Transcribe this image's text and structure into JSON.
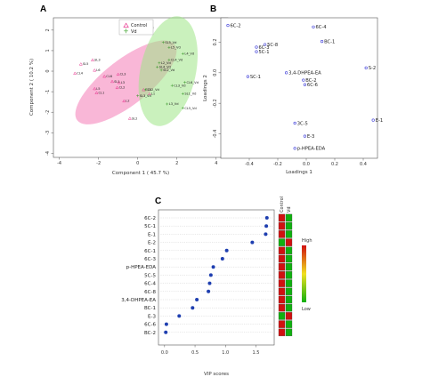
{
  "panels": {
    "a": {
      "letter": "A"
    },
    "b": {
      "letter": "B"
    },
    "c": {
      "letter": "C"
    }
  },
  "colors": {
    "control": "#e8368f",
    "vd": "#5bd84b",
    "control_ellipse": "#f47bb6",
    "vd_ellipse": "#9ee686",
    "loading_point": "#3b3bd8",
    "vip_point": "#1f3fb0",
    "heat_high": "#d01010",
    "heat_mid": "#f0e020",
    "heat_low": "#10b010"
  },
  "chart_data": [
    {
      "type": "scatter",
      "panel": "A",
      "xlabel": "Component 1 ( 45.7 %)",
      "ylabel": "Component 2 ( 10.2 %)",
      "xlim": [
        -4.3,
        4.6
      ],
      "ylim": [
        -4.2,
        2.6
      ],
      "xticks": [
        "-4",
        "-2",
        "0",
        "2",
        "4"
      ],
      "yticks": [
        "2",
        "1",
        "0",
        "-1",
        "-2",
        "-3",
        "-4"
      ],
      "legend_position": "top-left",
      "series": [
        {
          "name": "Control",
          "marker": "triangle",
          "ellipse": {
            "cx": -0.6,
            "cy": -0.55,
            "rx": 3.15,
            "ry": 1.1,
            "angle_deg": -38
          },
          "points": [
            {
              "label": "SL3",
              "x": -2.3,
              "y": 0.55
            },
            {
              "label": "SL5",
              "x": -2.9,
              "y": 0.35
            },
            {
              "label": "L6",
              "x": -2.2,
              "y": 0.05
            },
            {
              "label": "CL4",
              "x": -3.2,
              "y": -0.1
            },
            {
              "label": "CL6",
              "x": -1.7,
              "y": -0.25
            },
            {
              "label": "CL3",
              "x": -1.0,
              "y": -0.15
            },
            {
              "label": "L3",
              "x": -0.95,
              "y": -0.55
            },
            {
              "label": "CL2",
              "x": -1.05,
              "y": -0.8
            },
            {
              "label": "L5",
              "x": -2.2,
              "y": -0.85
            },
            {
              "label": "CL1",
              "x": -2.1,
              "y": -1.05
            },
            {
              "label": "SL1",
              "x": -1.3,
              "y": -0.5
            },
            {
              "label": "L1",
              "x": 0.6,
              "y": -1.1
            },
            {
              "label": "L2",
              "x": -0.7,
              "y": -1.45
            },
            {
              "label": "CL5",
              "x": 0.3,
              "y": -0.9
            },
            {
              "label": "SL2",
              "x": -0.4,
              "y": -2.3
            }
          ]
        },
        {
          "name": "Vd",
          "marker": "plus",
          "ellipse": {
            "cx": 1.55,
            "cy": 0.0,
            "rx": 2.85,
            "ry": 1.35,
            "angle_deg": -78
          },
          "points": [
            {
              "label": "DL5_Vd",
              "x": 0.1,
              "y": 2.1
            },
            {
              "label": "SL5_Vd",
              "x": 1.3,
              "y": 1.4
            },
            {
              "label": "L5_Vd",
              "x": 1.6,
              "y": 1.15
            },
            {
              "label": "L4_Vd",
              "x": 2.3,
              "y": 0.85
            },
            {
              "label": "CL4_Vd",
              "x": 1.6,
              "y": 0.55
            },
            {
              "label": "L2_Vd",
              "x": 1.1,
              "y": 0.4
            },
            {
              "label": "SL4_Vd",
              "x": 1.0,
              "y": 0.2
            },
            {
              "label": "SL2_Vd",
              "x": 1.2,
              "y": 0.05
            },
            {
              "label": "CL6_Vd",
              "x": 2.4,
              "y": -0.55
            },
            {
              "label": "CL3_Vd",
              "x": 1.75,
              "y": -0.7
            },
            {
              "label": "CL2_Vd",
              "x": 0.4,
              "y": -0.9
            },
            {
              "label": "SL1_Vd",
              "x": 2.3,
              "y": -1.1
            },
            {
              "label": "SL3_Vd",
              "x": 0.0,
              "y": -1.2
            },
            {
              "label": "L3_Vd",
              "x": 1.5,
              "y": -1.6
            },
            {
              "label": "CL5_Vd",
              "x": 2.3,
              "y": -1.8
            }
          ]
        }
      ]
    },
    {
      "type": "scatter",
      "panel": "B",
      "xlabel": "Loadings 1",
      "ylabel": "Loadings 2",
      "xlim": [
        -0.6,
        0.5
      ],
      "ylim": [
        -0.56,
        0.36
      ],
      "xticks": [
        "-0.4",
        "-0.2",
        "0.0",
        "0.2",
        "0.4"
      ],
      "yticks": [
        "0.2",
        "0.0",
        "-0.2",
        "-0.4"
      ],
      "points": [
        {
          "label": "6C-2",
          "x": -0.55,
          "y": 0.31
        },
        {
          "label": "6C-4",
          "x": 0.05,
          "y": 0.3
        },
        {
          "label": "BC-1",
          "x": 0.11,
          "y": 0.205
        },
        {
          "label": "5C-8",
          "x": -0.29,
          "y": 0.185
        },
        {
          "label": "6C-3",
          "x": -0.35,
          "y": 0.168
        },
        {
          "label": "5C-1",
          "x": -0.35,
          "y": 0.138
        },
        {
          "label": "S-2",
          "x": 0.42,
          "y": 0.032
        },
        {
          "label": "3,4-DHPEA-EA",
          "x": -0.14,
          "y": 0.0
        },
        {
          "label": "SC-1",
          "x": -0.41,
          "y": -0.025
        },
        {
          "label": "BC-2",
          "x": -0.02,
          "y": -0.048
        },
        {
          "label": "6C-6",
          "x": -0.01,
          "y": -0.078
        },
        {
          "label": "E-1",
          "x": 0.47,
          "y": -0.31
        },
        {
          "label": "3C-5",
          "x": -0.08,
          "y": -0.33
        },
        {
          "label": "E-3",
          "x": -0.01,
          "y": -0.415
        },
        {
          "label": "p-HPEA-EDA",
          "x": -0.08,
          "y": -0.495
        }
      ]
    },
    {
      "type": "scatter",
      "panel": "C",
      "xlabel": "VIP scores",
      "xlim": [
        -0.1,
        1.8
      ],
      "xticks": [
        "0.0",
        "0.5",
        "1.0",
        "1.5"
      ],
      "heatmap_columns": [
        "Control",
        "Vd"
      ],
      "heatmap_legend": {
        "high": "High",
        "low": "Low"
      },
      "items": [
        {
          "label": "6C-2",
          "vip": 1.68,
          "heat": [
            "high",
            "low"
          ]
        },
        {
          "label": "5C-1",
          "vip": 1.67,
          "heat": [
            "high",
            "low"
          ]
        },
        {
          "label": "E-1",
          "vip": 1.66,
          "heat": [
            "high",
            "low"
          ]
        },
        {
          "label": "E-2",
          "vip": 1.44,
          "heat": [
            "low",
            "high"
          ]
        },
        {
          "label": "6C-1",
          "vip": 1.02,
          "heat": [
            "high",
            "low"
          ]
        },
        {
          "label": "6C-3",
          "vip": 0.95,
          "heat": [
            "high",
            "low"
          ]
        },
        {
          "label": "p-HPEA-EDA",
          "vip": 0.8,
          "heat": [
            "high",
            "low"
          ]
        },
        {
          "label": "5C-5",
          "vip": 0.76,
          "heat": [
            "high",
            "low"
          ]
        },
        {
          "label": "6C-4",
          "vip": 0.74,
          "heat": [
            "high",
            "low"
          ]
        },
        {
          "label": "6C-8",
          "vip": 0.72,
          "heat": [
            "high",
            "low"
          ]
        },
        {
          "label": "3,4-DHPEA-EA",
          "vip": 0.53,
          "heat": [
            "high",
            "low"
          ]
        },
        {
          "label": "BC-1",
          "vip": 0.46,
          "heat": [
            "high",
            "low"
          ]
        },
        {
          "label": "E-3",
          "vip": 0.24,
          "heat": [
            "low",
            "high"
          ]
        },
        {
          "label": "6C-6",
          "vip": 0.03,
          "heat": [
            "high",
            "low"
          ]
        },
        {
          "label": "BC-2",
          "vip": 0.02,
          "heat": [
            "high",
            "low"
          ]
        }
      ]
    }
  ]
}
